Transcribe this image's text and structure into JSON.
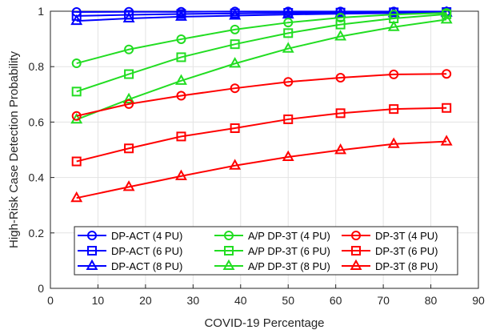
{
  "chart_data": {
    "type": "line",
    "title": "",
    "xlabel": "COVID-19 Percentage",
    "ylabel": "High-Risk Case Detection Probability",
    "xlim": [
      0,
      90
    ],
    "ylim": [
      0,
      1
    ],
    "x_ticks": [
      0,
      10,
      20,
      30,
      40,
      50,
      60,
      70,
      80,
      90
    ],
    "y_ticks": [
      0,
      0.2,
      0.4,
      0.6,
      0.8,
      1
    ],
    "grid": true,
    "legend_position": "bottom-right",
    "x": [
      5.5,
      16.5,
      27.5,
      38.8,
      50,
      61,
      72.2,
      83.3
    ],
    "series": [
      {
        "name": "DP-ACT (4 PU)",
        "color": "#0000ff",
        "marker": "circle",
        "values": [
          0.997,
          0.998,
          0.998,
          0.999,
          0.999,
          0.999,
          0.999,
          0.999
        ]
      },
      {
        "name": "DP-ACT (6 PU)",
        "color": "#0000ff",
        "marker": "square",
        "values": [
          0.983,
          0.987,
          0.99,
          0.992,
          0.994,
          0.995,
          0.996,
          0.997
        ]
      },
      {
        "name": "DP-ACT (8 PU)",
        "color": "#0000ff",
        "marker": "triangle",
        "values": [
          0.965,
          0.974,
          0.98,
          0.984,
          0.988,
          0.991,
          0.993,
          0.995
        ]
      },
      {
        "name": "A/P DP-3T (4 PU)",
        "color": "#22dd22",
        "marker": "circle",
        "values": [
          0.812,
          0.862,
          0.899,
          0.934,
          0.959,
          0.977,
          0.988,
          0.994
        ]
      },
      {
        "name": "A/P DP-3T (6 PU)",
        "color": "#22dd22",
        "marker": "square",
        "values": [
          0.71,
          0.773,
          0.834,
          0.881,
          0.921,
          0.952,
          0.974,
          0.989
        ]
      },
      {
        "name": "A/P DP-3T (8 PU)",
        "color": "#22dd22",
        "marker": "triangle",
        "values": [
          0.609,
          0.682,
          0.749,
          0.811,
          0.865,
          0.909,
          0.943,
          0.97
        ]
      },
      {
        "name": "DP-3T (4 PU)",
        "color": "#ff0000",
        "marker": "circle",
        "values": [
          0.622,
          0.665,
          0.695,
          0.722,
          0.745,
          0.76,
          0.772,
          0.774
        ]
      },
      {
        "name": "DP-3T (6 PU)",
        "color": "#ff0000",
        "marker": "square",
        "values": [
          0.458,
          0.505,
          0.548,
          0.578,
          0.61,
          0.632,
          0.647,
          0.651
        ]
      },
      {
        "name": "DP-3T (8 PU)",
        "color": "#ff0000",
        "marker": "triangle",
        "values": [
          0.326,
          0.366,
          0.405,
          0.443,
          0.474,
          0.499,
          0.521,
          0.53
        ]
      }
    ]
  }
}
